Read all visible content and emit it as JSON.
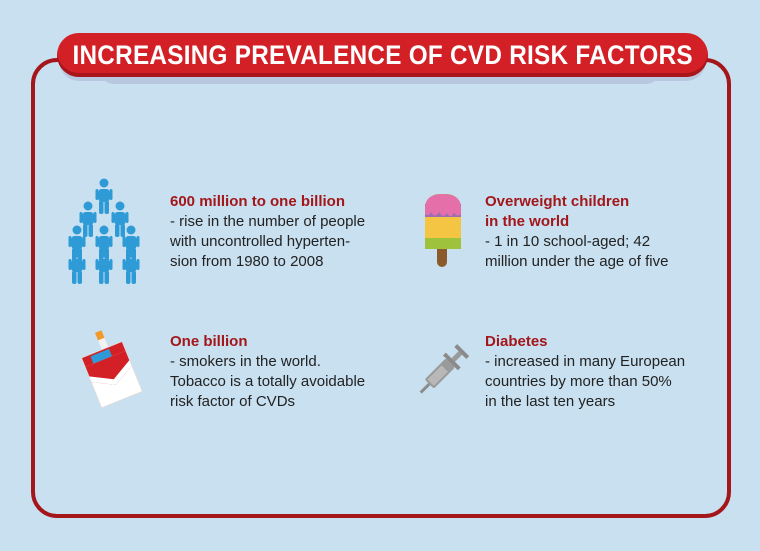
{
  "title": "INCREASING PREVALENCE OF CVD RISK FACTORS",
  "colors": {
    "accent": "#d31f26",
    "accent_dark": "#a3161a",
    "background": "#c8e0f0",
    "people": "#2e9bd6"
  },
  "items": [
    {
      "icon": "people-pyramid-icon",
      "heading": "600 million to one billion",
      "desc": "- rise in the number of people\nwith uncontrolled hyperten-\nsion from 1980 to 2008"
    },
    {
      "icon": "popsicle-icon",
      "heading": "Overweight children\nin the world",
      "desc": "- 1 in 10 school-aged; 42\nmillion under the age of five"
    },
    {
      "icon": "cigarette-pack-icon",
      "heading": "One billion",
      "desc": "- smokers in the world.\nTobacco is a totally avoidable\nrisk factor of CVDs"
    },
    {
      "icon": "syringe-icon",
      "heading": "Diabetes",
      "desc": "- increased in many European\ncountries by more than 50%\nin the last ten years"
    }
  ]
}
